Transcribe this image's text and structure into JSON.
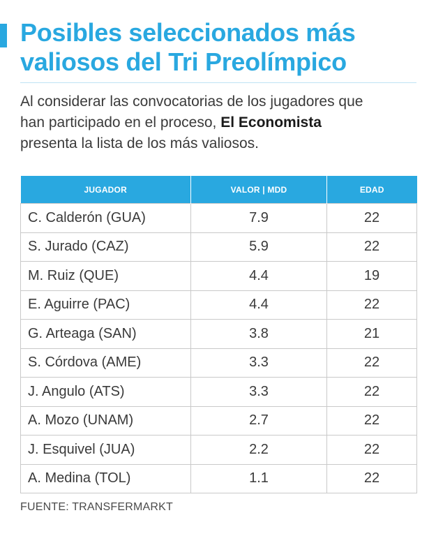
{
  "header": {
    "title_line1": "Posibles seleccionados más",
    "title_line2": "valiosos del Tri Preolímpico",
    "intro_line1": "Al considerar las convocatorias de los jugadores que",
    "intro_line2_pre": "han participado en el proceso, ",
    "intro_line2_bold": "El Economista",
    "intro_line3": "presenta la lista de los más valiosos."
  },
  "chart_data": {
    "type": "table",
    "columns": [
      "JUGADOR",
      "VALOR  |  MDD",
      "EDAD"
    ],
    "rows": [
      [
        "C. Calderón (GUA)",
        "7.9",
        "22"
      ],
      [
        "S. Jurado (CAZ)",
        "5.9",
        "22"
      ],
      [
        "M. Ruiz (QUE)",
        "4.4",
        "19"
      ],
      [
        "E. Aguirre (PAC)",
        "4.4",
        "22"
      ],
      [
        "G. Arteaga (SAN)",
        "3.8",
        "21"
      ],
      [
        "S. Córdova (AME)",
        "3.3",
        "22"
      ],
      [
        "J. Angulo (ATS)",
        "3.3",
        "22"
      ],
      [
        "A. Mozo (UNAM)",
        "2.7",
        "22"
      ],
      [
        "J. Esquivel (JUA)",
        "2.2",
        "22"
      ],
      [
        "A. Medina (TOL)",
        "1.1",
        "22"
      ]
    ]
  },
  "footer": {
    "source": "FUENTE: TRANSFERMARKT"
  },
  "colors": {
    "accent": "#29a8e0",
    "text": "#3a3a3a",
    "border": "#c9c9c9"
  }
}
